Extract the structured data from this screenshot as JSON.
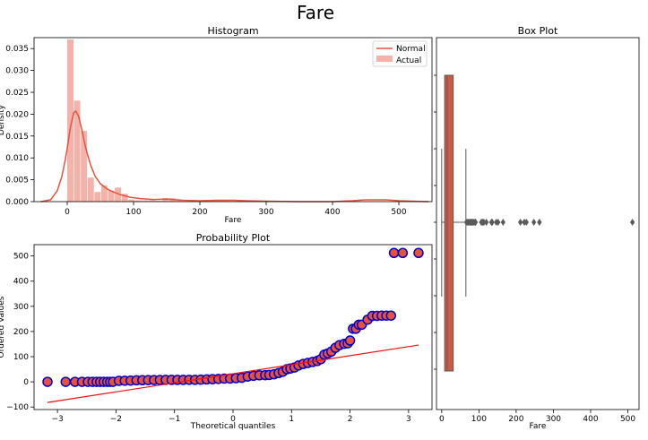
{
  "suptitle": "Fare",
  "chart_data": [
    {
      "type": "bar",
      "title": "Histogram",
      "xlabel": "Fare",
      "ylabel": "Density",
      "xlim": [
        -50,
        550
      ],
      "ylim": [
        0,
        0.0375
      ],
      "xticks": [
        0,
        100,
        200,
        300,
        400,
        500
      ],
      "yticks": [
        0.0,
        0.005,
        0.01,
        0.015,
        0.02,
        0.025,
        0.03,
        0.035
      ],
      "ytick_labels": [
        "0.000",
        "0.005",
        "0.010",
        "0.015",
        "0.020",
        "0.025",
        "0.030",
        "0.035"
      ],
      "legend": {
        "placement": "top-right",
        "entries": [
          "Normal",
          "Actual"
        ]
      },
      "bins": {
        "edges": [
          0,
          10.25,
          20.5,
          30.75,
          41,
          51.25,
          61.5,
          71.75,
          82,
          92.25,
          102.5,
          112.75,
          123,
          133.25,
          143.5,
          153.75,
          164,
          174.25,
          184.5,
          194.75,
          205,
          215.25,
          225.5,
          235.75,
          246,
          256.25,
          266.5,
          276.75,
          287,
          297.25,
          307.5,
          317.75,
          328,
          338.25,
          348.5,
          358.75,
          369,
          379.25,
          389.5,
          399.75,
          410,
          420.25,
          430.5,
          440.75,
          451,
          461.25,
          471.5,
          481.75,
          492,
          502.25,
          512.5
        ],
        "density": [
          0.0371,
          0.0231,
          0.0162,
          0.0055,
          0.0022,
          0.0037,
          0.0025,
          0.0032,
          0.0018,
          0.0005,
          0.0003,
          0.0003,
          0.0003,
          0.0002,
          0.0008,
          0.0008,
          0.0003,
          0.0001,
          0.0001,
          0.0001,
          0.0001,
          0.0003,
          0.0003,
          0.0002,
          0.0001,
          0.0004,
          0.0002,
          0.0002,
          0.0,
          0.0,
          0.0,
          0.0,
          0.0,
          0.0,
          0.0,
          0.0,
          0.0,
          0.0,
          0.0,
          0.0,
          0.0,
          0.0,
          0.0,
          0.0,
          0.0,
          0.0,
          0.0,
          0.0,
          0.0,
          0.0003
        ]
      },
      "kde": {
        "x": [
          -40,
          -25,
          -15,
          -8,
          -3,
          0,
          5,
          10,
          13,
          17,
          22,
          28,
          35,
          42,
          50,
          60,
          70,
          80,
          95,
          110,
          130,
          150,
          175,
          200,
          225,
          250,
          270,
          300,
          350,
          400,
          430,
          450,
          480,
          500,
          520,
          545
        ],
        "y": [
          0.0,
          0.0004,
          0.0025,
          0.0058,
          0.0095,
          0.0122,
          0.0172,
          0.0204,
          0.0207,
          0.0196,
          0.0165,
          0.0122,
          0.0085,
          0.0058,
          0.0041,
          0.0029,
          0.0022,
          0.0016,
          0.001,
          0.0007,
          0.0005,
          0.0006,
          0.0003,
          0.0002,
          0.0003,
          0.0003,
          0.0002,
          0.0001,
          0.0,
          0.0,
          0.0002,
          0.0004,
          0.0004,
          0.0002,
          0.0001,
          0.0
        ]
      },
      "colors": {
        "bars": "#f4b3aa",
        "kde": "#e5533d"
      }
    },
    {
      "type": "scatter",
      "title": "Probability Plot",
      "xlabel": "Theoretical quantiles",
      "ylabel": "Ordered Values",
      "xlim": [
        -3.4,
        3.4
      ],
      "ylim": [
        -110,
        545
      ],
      "xticks": [
        -3,
        -2,
        -1,
        0,
        1,
        2,
        3
      ],
      "yticks": [
        -100,
        0,
        100,
        200,
        300,
        400,
        500
      ],
      "points": [
        [
          -3.17,
          0
        ],
        [
          -2.86,
          0
        ],
        [
          -2.7,
          0
        ],
        [
          -2.58,
          0
        ],
        [
          -2.48,
          0
        ],
        [
          -2.4,
          0
        ],
        [
          -2.33,
          0
        ],
        [
          -2.27,
          0
        ],
        [
          -2.21,
          0
        ],
        [
          -2.15,
          0
        ],
        [
          -2.1,
          0
        ],
        [
          -2.05,
          0
        ],
        [
          -1.95,
          4.0
        ],
        [
          -1.85,
          4.5
        ],
        [
          -1.75,
          5.0
        ],
        [
          -1.65,
          6.0
        ],
        [
          -1.55,
          6.5
        ],
        [
          -1.45,
          7.0
        ],
        [
          -1.35,
          7.2
        ],
        [
          -1.25,
          7.5
        ],
        [
          -1.15,
          7.7
        ],
        [
          -1.05,
          7.8
        ],
        [
          -0.95,
          7.9
        ],
        [
          -0.85,
          7.9
        ],
        [
          -0.75,
          8.0
        ],
        [
          -0.65,
          8.1
        ],
        [
          -0.55,
          8.6
        ],
        [
          -0.45,
          9.5
        ],
        [
          -0.35,
          10.5
        ],
        [
          -0.25,
          11.5
        ],
        [
          -0.15,
          13.0
        ],
        [
          -0.05,
          13.0
        ],
        [
          0.05,
          14.5
        ],
        [
          0.15,
          16.0
        ],
        [
          0.25,
          21.0
        ],
        [
          0.35,
          24.0
        ],
        [
          0.45,
          26.0
        ],
        [
          0.55,
          26.5
        ],
        [
          0.62,
          27.5
        ],
        [
          0.7,
          30.0
        ],
        [
          0.78,
          35.0
        ],
        [
          0.85,
          40.0
        ],
        [
          0.92,
          50.0
        ],
        [
          0.98,
          53.0
        ],
        [
          1.05,
          57.0
        ],
        [
          1.12,
          65.0
        ],
        [
          1.2,
          71.0
        ],
        [
          1.28,
          75.0
        ],
        [
          1.36,
          79.0
        ],
        [
          1.44,
          83.0
        ],
        [
          1.5,
          90.0
        ],
        [
          1.56,
          108.0
        ],
        [
          1.62,
          113.0
        ],
        [
          1.68,
          120.0
        ],
        [
          1.75,
          135.0
        ],
        [
          1.82,
          146.0
        ],
        [
          1.9,
          151.0
        ],
        [
          1.96,
          153.0
        ],
        [
          2.0,
          164.0
        ],
        [
          2.05,
          211.0
        ],
        [
          2.1,
          211.0
        ],
        [
          2.15,
          227.0
        ],
        [
          2.2,
          227.0
        ],
        [
          2.3,
          247.0
        ],
        [
          2.38,
          262.0
        ],
        [
          2.46,
          262.0
        ],
        [
          2.54,
          263.0
        ],
        [
          2.62,
          263.0
        ],
        [
          2.7,
          263.0
        ],
        [
          2.75,
          512.0
        ],
        [
          2.9,
          512.0
        ],
        [
          3.17,
          512.0
        ]
      ],
      "fit_line": {
        "x": [
          -3.17,
          3.17
        ],
        "y": [
          -82,
          146
        ]
      },
      "colors": {
        "marker_face": "#e5533d",
        "marker_edge": "#0000cc",
        "line": "#ee1111"
      }
    },
    {
      "type": "box",
      "title": "Box Plot",
      "xlabel": "Fare",
      "orientation": "horizontal-values",
      "xlim": [
        -14,
        530
      ],
      "xticks": [
        0,
        100,
        200,
        300,
        400,
        500
      ],
      "stats": {
        "min": 0,
        "q1": 7.91,
        "median": 14.45,
        "q3": 31.0,
        "whisker_high": 65.0
      },
      "outliers": [
        66.6,
        69.55,
        71.28,
        73.5,
        76.73,
        77.96,
        79.2,
        80.0,
        82.17,
        83.16,
        86.5,
        89.1,
        90.0,
        91.08,
        106.43,
        108.9,
        110.88,
        113.28,
        120.0,
        133.65,
        134.5,
        135.63,
        146.52,
        151.55,
        164.87,
        211.34,
        221.78,
        227.53,
        247.52,
        262.38,
        512.33
      ],
      "colors": {
        "box": "#cd5a47",
        "lines": "#5a5a5a"
      }
    }
  ]
}
